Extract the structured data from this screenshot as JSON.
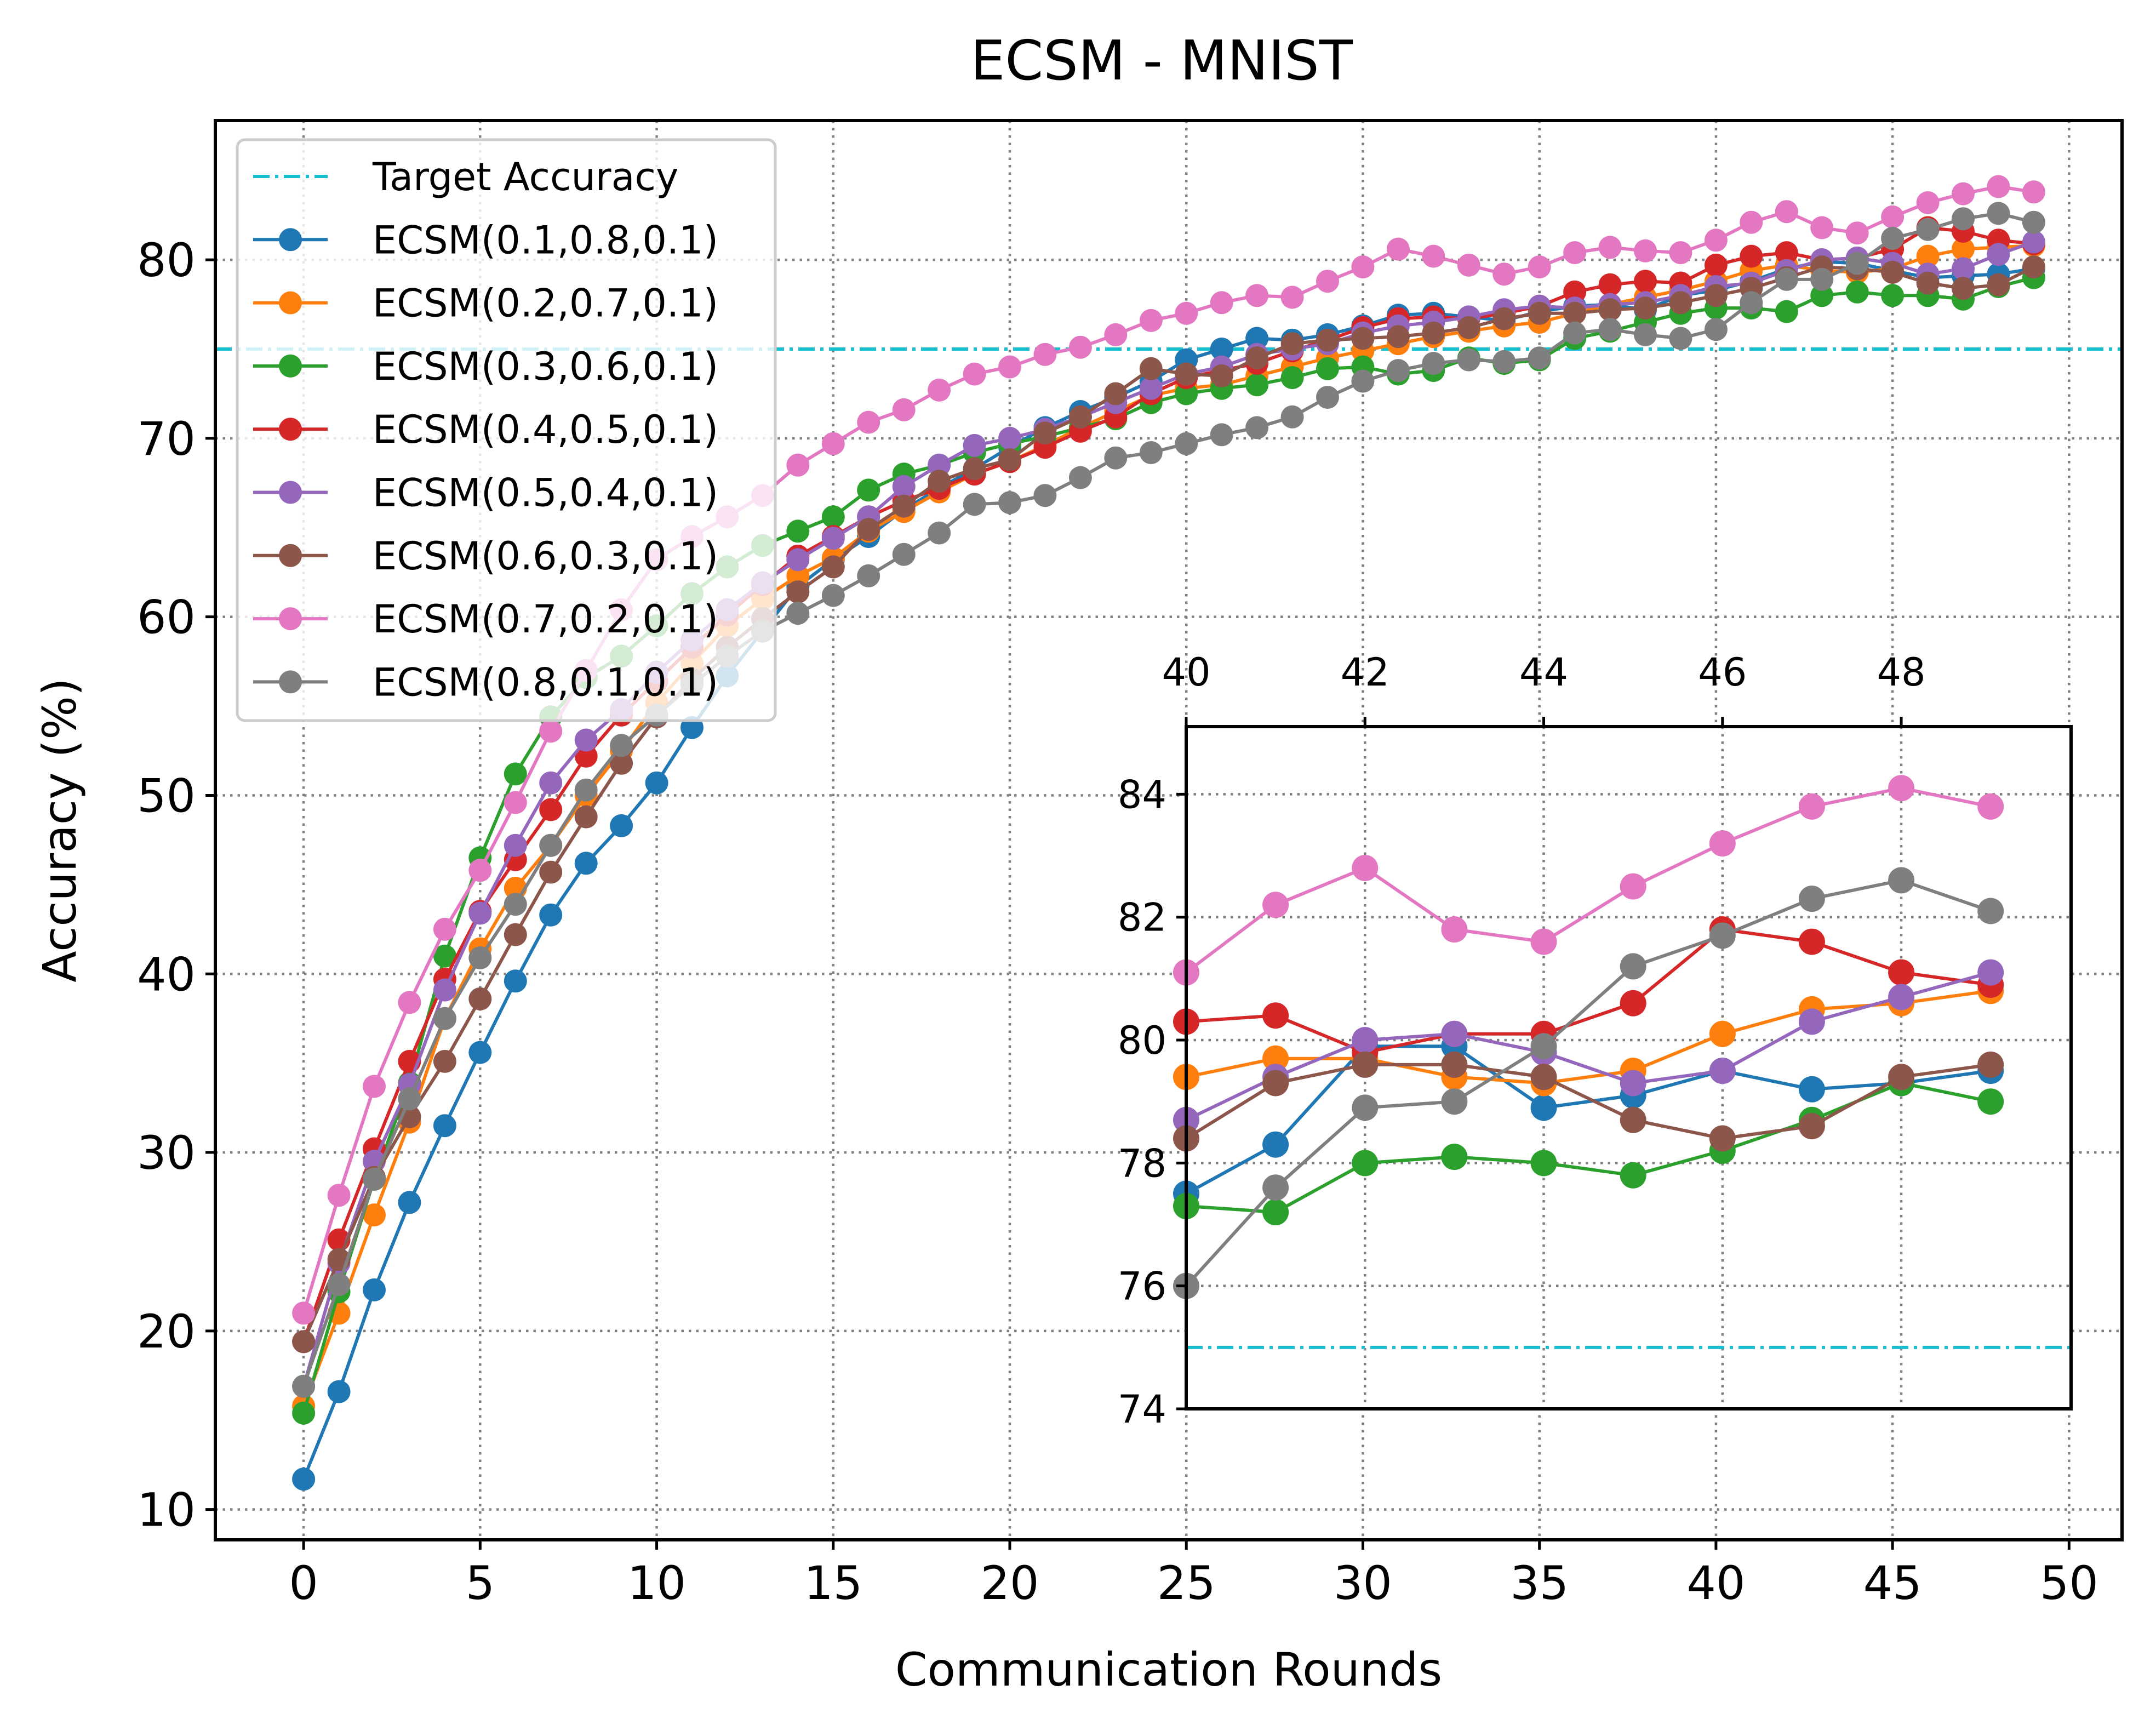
{
  "chart_data": [
    {
      "type": "line",
      "title": "ECSM - MNIST",
      "xlabel": "Communication Rounds",
      "ylabel": "Accuracy (%)",
      "xlim": [
        -2.5,
        51.5
      ],
      "ylim": [
        8.3,
        87.8
      ],
      "xticks": [
        0,
        5,
        10,
        15,
        20,
        25,
        30,
        35,
        40,
        45,
        50
      ],
      "yticks": [
        10,
        20,
        30,
        40,
        50,
        60,
        70,
        80
      ],
      "grid": true,
      "legend": "upper-left",
      "target": {
        "name": "Target Accuracy",
        "value": 75,
        "color": "#17becf"
      },
      "series": [
        {
          "name": "ECSM(0.1,0.8,0.1)",
          "color": "#1f77b4",
          "values": [
            11.7,
            16.6,
            22.3,
            27.2,
            31.5,
            35.6,
            39.6,
            43.3,
            46.2,
            48.3,
            50.7,
            53.8,
            56.7,
            59.2,
            61.7,
            63.2,
            64.5,
            66.0,
            67.2,
            68.3,
            69.5,
            70.6,
            71.5,
            72.3,
            73.2,
            74.4,
            75.0,
            75.6,
            75.5,
            75.8,
            76.3,
            76.9,
            77.0,
            76.8,
            76.6,
            77.1,
            77.4,
            77.5,
            77.2,
            78.0,
            78.3,
            78.8,
            79.5,
            79.9,
            79.8,
            79.4,
            79.0,
            79.1,
            79.2,
            79.5
          ]
        },
        {
          "name": "ECSM(0.2,0.7,0.1)",
          "color": "#ff7f0e",
          "values": [
            15.8,
            21.0,
            26.5,
            31.7,
            37.5,
            41.4,
            44.8,
            47.2,
            50.0,
            52.5,
            55.2,
            57.4,
            59.5,
            61.0,
            62.3,
            63.3,
            64.8,
            65.9,
            67.0,
            68.0,
            68.7,
            69.6,
            70.6,
            71.5,
            72.4,
            72.8,
            73.0,
            73.5,
            74.0,
            74.5,
            74.9,
            75.3,
            75.7,
            76.0,
            76.3,
            76.5,
            77.0,
            77.5,
            77.9,
            78.3,
            78.8,
            79.4,
            79.7,
            79.4,
            79.3,
            79.5,
            80.2,
            80.6,
            80.7,
            80.8
          ]
        },
        {
          "name": "ECSM(0.3,0.6,0.1)",
          "color": "#2ca02c",
          "values": [
            15.4,
            22.2,
            28.5,
            33.9,
            41.0,
            46.5,
            51.2,
            54.4,
            56.6,
            57.8,
            59.5,
            61.3,
            62.8,
            64.0,
            64.8,
            65.6,
            67.1,
            68.0,
            68.5,
            69.2,
            69.7,
            70.1,
            70.6,
            71.1,
            72.0,
            72.5,
            72.8,
            73.0,
            73.4,
            73.9,
            74.0,
            73.6,
            73.8,
            74.5,
            74.2,
            74.4,
            75.6,
            76.0,
            76.5,
            77.0,
            77.3,
            77.3,
            77.1,
            78.0,
            78.2,
            78.0,
            78.0,
            77.8,
            78.5,
            79.0
          ]
        },
        {
          "name": "ECSM(0.4,0.5,0.1)",
          "color": "#d62728",
          "values": [
            19.4,
            25.1,
            30.2,
            35.1,
            39.7,
            43.5,
            46.4,
            49.2,
            52.2,
            54.5,
            56.4,
            58.3,
            60.1,
            61.8,
            63.4,
            64.5,
            65.6,
            66.5,
            67.2,
            68.0,
            68.7,
            69.5,
            70.4,
            71.2,
            72.5,
            73.4,
            73.8,
            74.2,
            74.9,
            75.5,
            76.2,
            76.7,
            76.8,
            76.7,
            77.0,
            77.4,
            78.2,
            78.6,
            78.8,
            78.7,
            79.7,
            80.2,
            80.4,
            80.0,
            80.1,
            80.6,
            81.8,
            81.6,
            81.1,
            80.9
          ]
        },
        {
          "name": "ECSM(0.5,0.4,0.1)",
          "color": "#9467bd",
          "values": [
            16.9,
            23.8,
            29.5,
            33.8,
            39.1,
            43.4,
            47.2,
            50.7,
            53.1,
            54.8,
            56.9,
            58.7,
            60.4,
            61.9,
            63.2,
            64.4,
            65.6,
            67.3,
            68.5,
            69.6,
            70.0,
            70.5,
            71.2,
            72.0,
            72.8,
            73.6,
            74.0,
            74.7,
            75.0,
            75.3,
            75.9,
            76.3,
            76.5,
            76.8,
            77.2,
            77.4,
            77.3,
            77.5,
            77.6,
            78.0,
            78.5,
            78.7,
            79.4,
            80.0,
            80.1,
            79.8,
            79.2,
            79.5,
            80.3,
            81.0
          ]
        },
        {
          "name": "ECSM(0.6,0.3,0.1)",
          "color": "#8c564b",
          "values": [
            19.4,
            24.0,
            28.6,
            32.0,
            35.1,
            38.6,
            42.2,
            45.7,
            48.8,
            51.8,
            54.4,
            56.5,
            58.3,
            59.9,
            61.4,
            62.8,
            64.9,
            66.2,
            67.6,
            68.3,
            68.8,
            70.3,
            71.2,
            72.5,
            73.9,
            73.6,
            73.5,
            74.5,
            75.3,
            75.5,
            75.6,
            75.7,
            75.9,
            76.2,
            76.7,
            77.0,
            77.0,
            77.2,
            77.3,
            77.6,
            78.0,
            78.4,
            79.0,
            79.6,
            79.5,
            79.3,
            78.7,
            78.4,
            78.6,
            79.6
          ]
        },
        {
          "name": "ECSM(0.7,0.2,0.1)",
          "color": "#e377c2",
          "values": [
            21.0,
            27.6,
            33.7,
            38.4,
            42.5,
            45.8,
            49.6,
            53.6,
            57.0,
            60.4,
            63.2,
            64.5,
            65.6,
            66.8,
            68.5,
            69.7,
            70.9,
            71.6,
            72.7,
            73.6,
            74.0,
            74.7,
            75.1,
            75.8,
            76.6,
            77.0,
            77.6,
            78.0,
            77.9,
            78.8,
            79.6,
            80.6,
            80.2,
            79.7,
            79.2,
            79.6,
            80.4,
            80.7,
            80.5,
            80.4,
            81.1,
            82.1,
            82.7,
            81.8,
            81.5,
            82.4,
            83.2,
            83.7,
            84.1,
            83.8
          ]
        },
        {
          "name": "ECSM(0.8,0.1,0.1)",
          "color": "#7f7f7f",
          "values": [
            16.9,
            22.6,
            28.5,
            33.0,
            37.5,
            40.9,
            43.9,
            47.2,
            50.3,
            52.8,
            54.5,
            56.2,
            57.8,
            59.2,
            60.2,
            61.2,
            62.3,
            63.5,
            64.7,
            66.3,
            66.4,
            66.8,
            67.8,
            68.9,
            69.2,
            69.7,
            70.2,
            70.6,
            71.2,
            72.3,
            73.2,
            73.8,
            74.2,
            74.4,
            74.3,
            74.5,
            75.9,
            76.1,
            75.8,
            75.6,
            76.1,
            77.6,
            78.9,
            78.9,
            79.8,
            81.2,
            81.7,
            82.3,
            82.6,
            82.1
          ]
        }
      ]
    },
    {
      "type": "line",
      "title": "",
      "inset": true,
      "xlim": [
        40,
        49.9
      ],
      "ylim": [
        74,
        85.1
      ],
      "xticks": [
        40,
        42,
        44,
        46,
        48
      ],
      "xticks_position": "top",
      "yticks": [
        74,
        76,
        78,
        80,
        82,
        84
      ],
      "x_bottom_ticks": [
        25,
        27.5,
        30,
        32.5,
        35,
        37.5,
        40,
        42.5,
        45,
        47.5
      ],
      "grid": true,
      "x": [
        40,
        41,
        42,
        43,
        44,
        45,
        46,
        47,
        48,
        49
      ],
      "target": {
        "value": 75
      },
      "series": [
        {
          "color": "#1f77b4",
          "values": [
            77.5,
            78.3,
            79.9,
            79.9,
            78.9,
            79.1,
            79.5,
            79.2,
            79.3,
            79.5
          ]
        },
        {
          "color": "#ff7f0e",
          "values": [
            79.4,
            79.7,
            79.7,
            79.4,
            79.3,
            79.5,
            80.1,
            80.5,
            80.6,
            80.8
          ]
        },
        {
          "color": "#2ca02c",
          "values": [
            77.3,
            77.2,
            78.0,
            78.1,
            78.0,
            77.8,
            78.2,
            78.7,
            79.3,
            79.0
          ]
        },
        {
          "color": "#d62728",
          "values": [
            80.3,
            80.4,
            79.8,
            80.1,
            80.1,
            80.6,
            81.8,
            81.6,
            81.1,
            80.9
          ]
        },
        {
          "color": "#9467bd",
          "values": [
            78.7,
            79.4,
            80.0,
            80.1,
            79.8,
            79.3,
            79.5,
            80.3,
            80.7,
            81.1
          ]
        },
        {
          "color": "#8c564b",
          "values": [
            78.4,
            79.3,
            79.6,
            79.6,
            79.4,
            78.7,
            78.4,
            78.6,
            79.4,
            79.6
          ]
        },
        {
          "color": "#e377c2",
          "values": [
            81.1,
            82.2,
            82.8,
            81.8,
            81.6,
            82.5,
            83.2,
            83.8,
            84.1,
            83.8
          ]
        },
        {
          "color": "#7f7f7f",
          "values": [
            76.0,
            77.6,
            78.9,
            79.0,
            79.9,
            81.2,
            81.7,
            82.3,
            82.6,
            82.1
          ]
        }
      ]
    }
  ]
}
